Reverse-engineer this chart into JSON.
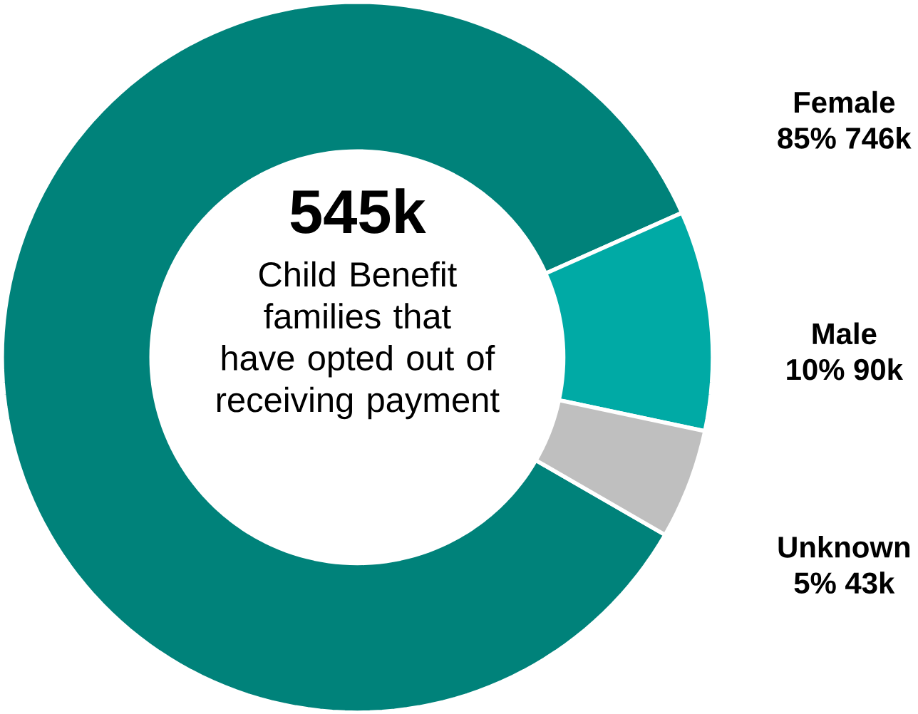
{
  "chart_data": {
    "type": "donut",
    "categories": [
      "Female",
      "Male",
      "Unknown"
    ],
    "values": [
      85,
      10,
      5
    ],
    "value_labels": [
      "85% 746k",
      "10% 90k",
      "5% 43k"
    ],
    "colors": [
      "#00827a",
      "#00aaa5",
      "#bfbfbf"
    ],
    "annotations": [
      "545k",
      "Child Benefit families that have opted out of receiving payment"
    ]
  }
}
